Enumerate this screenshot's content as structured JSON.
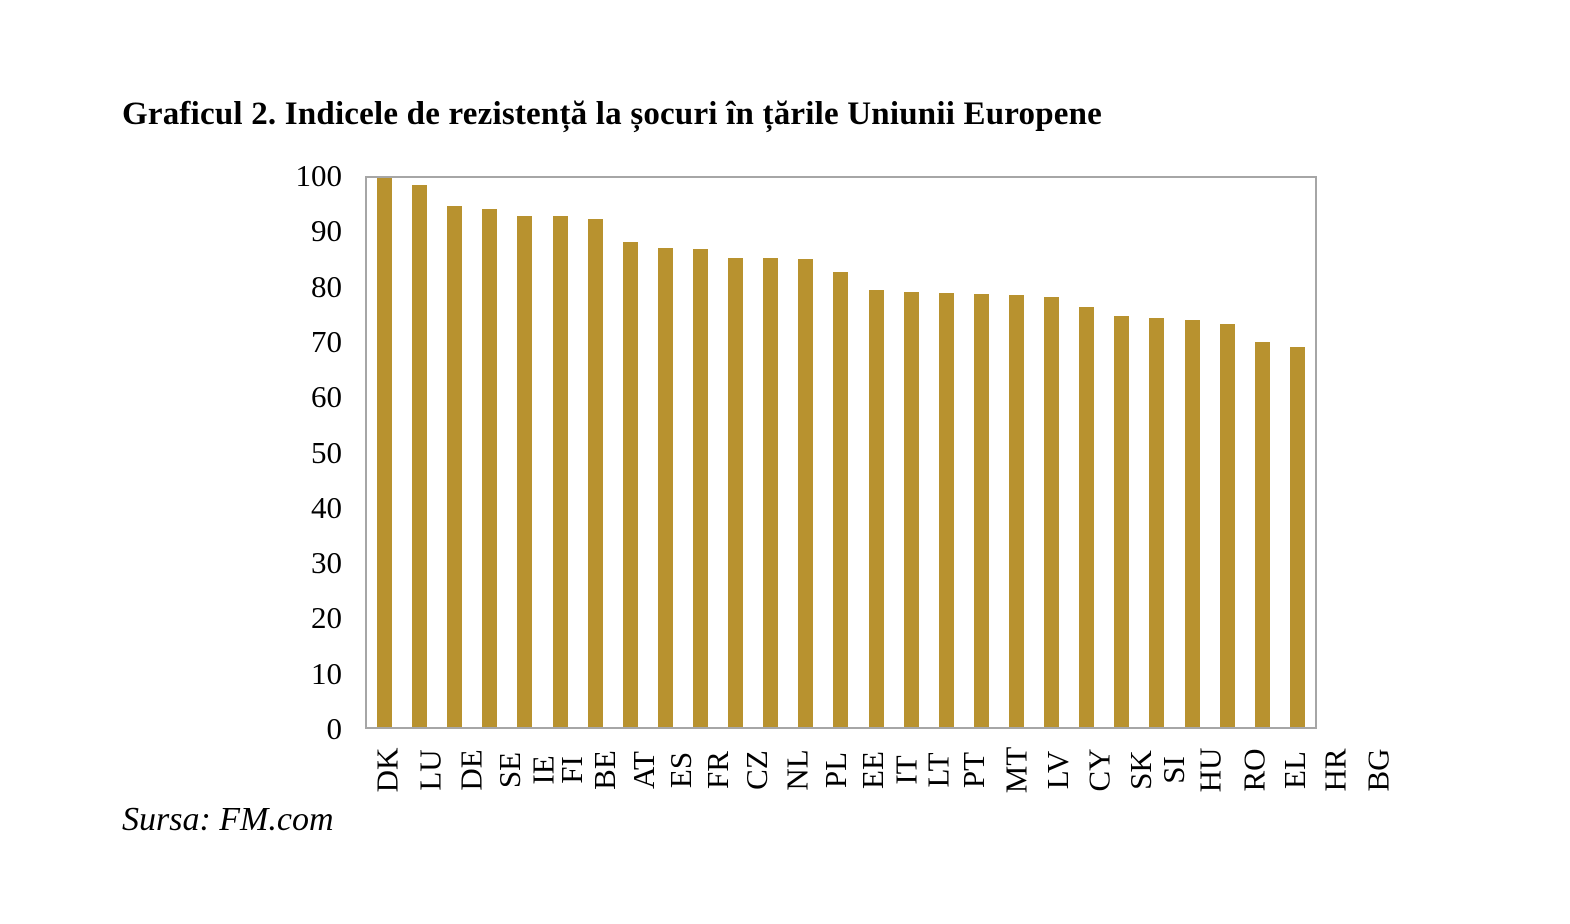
{
  "title": "Graficul 2. Indicele de rezistență la șocuri în țările Uniunii Europene",
  "source": "Sursa: FM.com",
  "chart_data": {
    "type": "bar",
    "title": "Graficul 2. Indicele de rezistență la șocuri în țările Uniunii Europene",
    "categories": [
      "DK",
      "LU",
      "DE",
      "SE",
      "IE",
      "FI",
      "BE",
      "AT",
      "ES",
      "FR",
      "CZ",
      "NL",
      "PL",
      "EE",
      "IT",
      "LT",
      "PT",
      "MT",
      "LV",
      "CY",
      "SK",
      "SI",
      "HU",
      "RO",
      "EL",
      "HR",
      "BG"
    ],
    "values": [
      100,
      98.7,
      94.9,
      94.4,
      93.0,
      93.0,
      92.6,
      88.4,
      87.3,
      87.1,
      85.5,
      85.4,
      85.2,
      82.8,
      79.6,
      79.3,
      79.0,
      78.9,
      78.7,
      78.3,
      76.5,
      74.9,
      74.5,
      74.2,
      73.4,
      70.2,
      69.2
    ],
    "xlabel": "",
    "ylabel": "",
    "ylim": [
      0,
      100
    ],
    "yticks": [
      0,
      10,
      20,
      30,
      40,
      50,
      60,
      70,
      80,
      90,
      100
    ],
    "grid": false,
    "legend": "none",
    "xtick_rotation_deg": 90,
    "bar_color": "#B8922F",
    "frame_color": "#A6A6A6",
    "text_color": "#000000",
    "source_note": "Sursa: FM.com"
  }
}
